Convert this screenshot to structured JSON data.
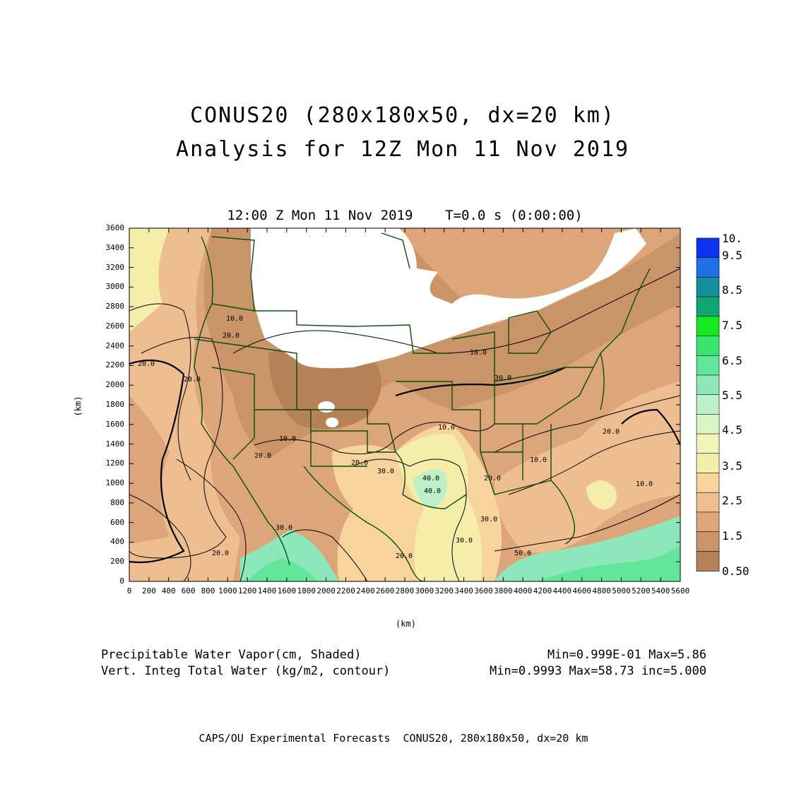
{
  "title": {
    "line1": "CONUS20 (280x180x50, dx=20 km)",
    "line2": "Analysis for 12Z Mon 11 Nov 2019"
  },
  "plot": {
    "subtitle": "12:00 Z Mon 11 Nov 2019    T=0.0 s (0:00:00)",
    "y_axis_label": "(km)",
    "x_axis_label": "(km)",
    "y_ticks": [
      "3600",
      "3400",
      "3200",
      "3000",
      "2800",
      "2600",
      "2400",
      "2200",
      "2000",
      "1800",
      "1600",
      "1400",
      "1200",
      "1000",
      "800",
      "600",
      "400",
      "200",
      "0"
    ],
    "x_ticks": [
      "0",
      "200",
      "400",
      "600",
      "800",
      "1000",
      "1200",
      "1400",
      "1600",
      "1800",
      "2000",
      "2200",
      "2400",
      "2600",
      "2800",
      "3000",
      "3200",
      "3400",
      "3600",
      "3800",
      "4000",
      "4200",
      "4400",
      "4600",
      "4800",
      "5000",
      "5200",
      "5400",
      "5600"
    ],
    "contour_labels": [
      "10.0",
      "20.0",
      "20.0",
      "10.0",
      "20.0",
      "30.0",
      "40.0",
      "20.0",
      "10.0",
      "20.0",
      "30.0",
      "30.0",
      "40.0",
      "50.0",
      "20.0",
      "30.0",
      "10.0",
      "20.0",
      "30.0",
      "20.0",
      "10.0",
      "10.0",
      "20.0"
    ]
  },
  "colorbar": {
    "labels": [
      "10.",
      "9.5",
      "8.5",
      "7.5",
      "6.5",
      "5.5",
      "4.5",
      "3.5",
      "2.5",
      "1.5",
      "0.50"
    ],
    "colors": [
      "#0c33ee",
      "#1f6fe6",
      "#138f9e",
      "#10a572",
      "#14ea1f",
      "#3ae470",
      "#62e79a",
      "#8de7ba",
      "#bdf0c8",
      "#d9f5c5",
      "#f2f5ba",
      "#f5eeab",
      "#f7d49c",
      "#eebe90",
      "#dca57a",
      "#c99468",
      "#b78158"
    ]
  },
  "legend": {
    "field1_name": "Precipitable Water Vapor(cm, Shaded)",
    "field1_stats": "Min=0.999E-01 Max=5.86",
    "field2_name": "Vert. Integ Total Water (kg/m2, contour)",
    "field2_stats": "Min=0.9993 Max=58.73 inc=5.000"
  },
  "footer": "CAPS/OU Experimental Forecasts  CONUS20, 280x180x50, dx=20 km"
}
